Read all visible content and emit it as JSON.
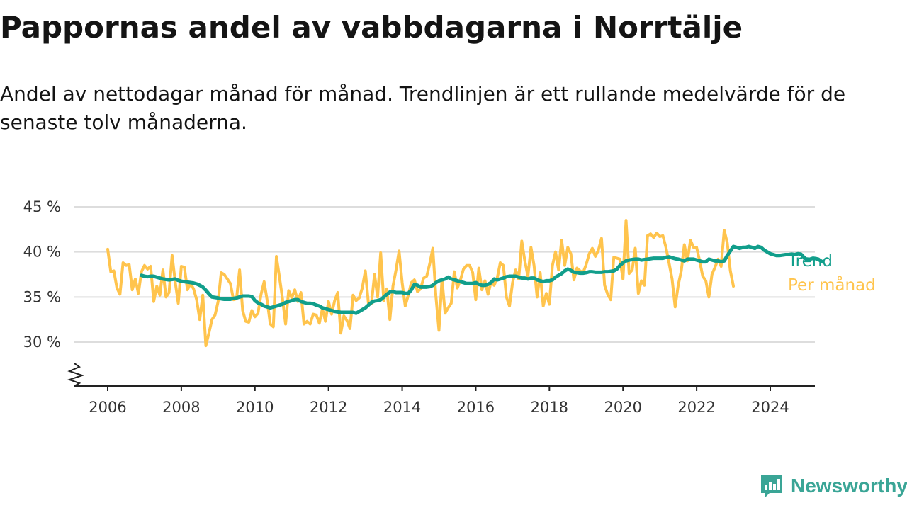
{
  "chart_data": {
    "type": "line",
    "title": "Pappornas andel av vabbdagarna i Norrtälje",
    "subtitle": "Andel av nettodagar månad för månad. Trendlinjen är ett rullande medelvärde för de senaste tolv månaderna.",
    "x_axis": {
      "type": "time",
      "min": 2005.5,
      "max": 2025.2,
      "ticks": [
        "2006",
        "2008",
        "2010",
        "2012",
        "2014",
        "2016",
        "2018",
        "2020",
        "2022",
        "2024"
      ]
    },
    "y_axis": {
      "min": 25,
      "max": 45,
      "ticks": [
        30,
        35,
        40,
        45
      ],
      "tick_labels": [
        "30 %",
        "35 %",
        "40 %",
        "45 %"
      ],
      "axis_break": true
    },
    "grid": true,
    "legend": "direct labels at line ends",
    "series": [
      {
        "name": "Per månad",
        "color": "#ffc44d",
        "x_start": 2006.0,
        "step": 0.08333,
        "values": [
          40.3,
          37.8,
          37.9,
          36.0,
          35.3,
          38.8,
          38.5,
          38.6,
          35.8,
          37.0,
          35.4,
          37.8,
          38.5,
          38.1,
          38.4,
          34.5,
          36.2,
          35.2,
          38.0,
          35.0,
          35.5,
          39.6,
          36.7,
          34.3,
          38.4,
          38.3,
          35.8,
          36.5,
          35.9,
          34.7,
          32.5,
          35.2,
          29.6,
          31.0,
          32.5,
          33.0,
          34.5,
          37.7,
          37.5,
          37.0,
          36.5,
          34.7,
          34.8,
          38.0,
          33.5,
          32.3,
          32.2,
          33.5,
          32.8,
          33.2,
          35.3,
          36.7,
          34.6,
          32.0,
          31.7,
          39.5,
          37.2,
          34.8,
          32.0,
          35.7,
          34.9,
          35.8,
          34.5,
          35.5,
          32.0,
          32.3,
          32.0,
          33.1,
          33.0,
          32.1,
          33.7,
          32.3,
          34.5,
          33.1,
          34.6,
          35.5,
          31.0,
          32.9,
          32.4,
          31.5,
          35.2,
          34.6,
          34.9,
          36.0,
          37.9,
          34.3,
          34.3,
          37.5,
          35.0,
          39.9,
          34.6,
          35.9,
          32.5,
          36.2,
          38.0,
          40.1,
          36.6,
          34.0,
          35.2,
          36.6,
          36.9,
          35.6,
          35.9,
          37.1,
          37.3,
          38.7,
          40.4,
          35.1,
          31.3,
          37.0,
          33.2,
          33.8,
          34.3,
          37.8,
          36.0,
          36.9,
          38.1,
          38.5,
          38.5,
          37.7,
          34.7,
          38.2,
          35.8,
          36.8,
          35.3,
          36.7,
          36.3,
          37.1,
          38.8,
          38.5,
          35.0,
          34.0,
          36.6,
          38.0,
          37.0,
          41.2,
          39.0,
          37.3,
          40.5,
          38.5,
          35.0,
          37.7,
          34.0,
          35.4,
          34.2,
          38.5,
          40.0,
          38.0,
          41.3,
          38.5,
          40.5,
          39.8,
          36.9,
          38.2,
          37.9,
          37.7,
          38.6,
          39.8,
          40.4,
          39.5,
          40.2,
          41.5,
          36.3,
          35.3,
          34.7,
          39.4,
          39.3,
          39.2,
          37.0,
          43.5,
          37.6,
          38.0,
          40.4,
          35.4,
          36.8,
          36.3,
          41.8,
          42.0,
          41.6,
          42.1,
          41.7,
          41.8,
          40.5,
          38.8,
          37.0,
          33.9,
          36.3,
          37.9,
          40.8,
          39.0,
          41.3,
          40.5,
          40.5,
          39.0,
          37.3,
          36.8,
          35.0,
          37.5,
          38.3,
          39.2,
          38.4,
          42.4,
          41.0,
          37.9,
          36.2
        ]
      },
      {
        "name": "Trend",
        "color": "#119e8b",
        "x_start": 2006.917,
        "step": 0.08333,
        "values": [
          37.4,
          37.3,
          37.25,
          37.3,
          37.3,
          37.2,
          37.1,
          37.0,
          36.95,
          36.9,
          36.95,
          37.0,
          36.85,
          36.75,
          36.7,
          36.65,
          36.6,
          36.55,
          36.45,
          36.3,
          36.1,
          35.75,
          35.35,
          35.0,
          34.95,
          34.9,
          34.8,
          34.75,
          34.75,
          34.75,
          34.85,
          34.9,
          35.0,
          35.1,
          35.1,
          35.1,
          35.05,
          34.6,
          34.35,
          34.2,
          34.0,
          33.9,
          33.8,
          33.9,
          34.0,
          34.1,
          34.2,
          34.4,
          34.5,
          34.6,
          34.7,
          34.7,
          34.5,
          34.4,
          34.3,
          34.3,
          34.25,
          34.1,
          34.0,
          33.8,
          33.7,
          33.6,
          33.5,
          33.4,
          33.35,
          33.3,
          33.3,
          33.3,
          33.3,
          33.3,
          33.2,
          33.4,
          33.6,
          33.8,
          34.1,
          34.4,
          34.55,
          34.6,
          34.7,
          35.0,
          35.3,
          35.55,
          35.6,
          35.5,
          35.5,
          35.5,
          35.4,
          35.4,
          35.8,
          36.4,
          36.3,
          36.1,
          36.1,
          36.1,
          36.15,
          36.3,
          36.6,
          36.8,
          36.9,
          37.0,
          37.2,
          37.0,
          36.9,
          36.8,
          36.7,
          36.6,
          36.5,
          36.5,
          36.5,
          36.6,
          36.4,
          36.3,
          36.3,
          36.4,
          36.6,
          37.0,
          36.9,
          37.0,
          37.1,
          37.25,
          37.3,
          37.3,
          37.3,
          37.2,
          37.1,
          37.1,
          37.0,
          37.1,
          37.1,
          36.9,
          36.8,
          36.7,
          36.8,
          36.8,
          36.9,
          37.2,
          37.4,
          37.6,
          37.9,
          38.1,
          37.95,
          37.75,
          37.7,
          37.65,
          37.65,
          37.7,
          37.8,
          37.8,
          37.75,
          37.75,
          37.75,
          37.8,
          37.8,
          37.85,
          37.9,
          38.1,
          38.5,
          38.8,
          39.0,
          39.1,
          39.15,
          39.2,
          39.2,
          39.1,
          39.15,
          39.2,
          39.25,
          39.3,
          39.3,
          39.3,
          39.3,
          39.4,
          39.45,
          39.35,
          39.25,
          39.2,
          39.1,
          39.0,
          39.2,
          39.2,
          39.2,
          39.1,
          39.0,
          38.9,
          38.9,
          39.2,
          39.1,
          39.0,
          39.0,
          38.9,
          39.0,
          39.6,
          40.1,
          40.6,
          40.5,
          40.4,
          40.5,
          40.5,
          40.6,
          40.5,
          40.4,
          40.6,
          40.5,
          40.2,
          40.0,
          39.8,
          39.7,
          39.6,
          39.6,
          39.65,
          39.7,
          39.7,
          39.75,
          39.7,
          39.8,
          39.75,
          39.4,
          39.1,
          39.2,
          39.3,
          39.25,
          39.1,
          38.9
        ]
      }
    ]
  },
  "logo": {
    "text": "Newsworthy",
    "color": "#3aa596"
  }
}
